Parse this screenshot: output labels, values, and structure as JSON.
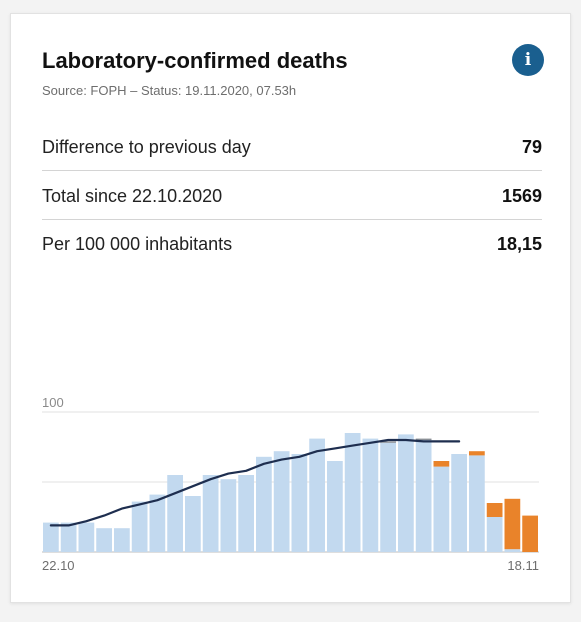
{
  "card": {
    "title": "Laboratory-confirmed deaths",
    "source": "Source: FOPH – Status: 19.11.2020, 07.53h",
    "info_icon_glyph": "i"
  },
  "kpis": [
    {
      "label": "Difference to previous day",
      "value": "79"
    },
    {
      "label": "Total since 22.10.2020",
      "value": "1569"
    },
    {
      "label": "Per 100 000 inhabitants",
      "value": "18,15"
    }
  ],
  "colors": {
    "bar_confirmed": "#c2d9ef",
    "bar_incomplete": "#e9832a",
    "line_avg": "#1e2e4f",
    "grid": "#e0e0e0",
    "info_button": "#1a5f8f"
  },
  "chart_data": {
    "type": "bar",
    "title": "",
    "xlabel": "",
    "ylabel": "",
    "ylim": [
      0,
      100
    ],
    "y_ticks": [
      50,
      100
    ],
    "y_tick_labels": [
      "",
      "100"
    ],
    "x_tick_labels": [
      "22.10",
      "18.11"
    ],
    "categories": [
      "22.10",
      "23.10",
      "24.10",
      "25.10",
      "26.10",
      "27.10",
      "28.10",
      "29.10",
      "30.10",
      "31.10",
      "01.11",
      "02.11",
      "03.11",
      "04.11",
      "05.11",
      "06.11",
      "07.11",
      "08.11",
      "09.11",
      "10.11",
      "11.11",
      "12.11",
      "13.11",
      "14.11",
      "15.11",
      "16.11",
      "17.11",
      "18.11"
    ],
    "series": [
      {
        "values": [
          21,
          21,
          21,
          17,
          17,
          36,
          41,
          55,
          40,
          55,
          52,
          55,
          68,
          72,
          70,
          81,
          65,
          85,
          81,
          78,
          84,
          80,
          61,
          70,
          69,
          25,
          2,
          0
        ]
      },
      {
        "values": [
          0,
          0,
          0,
          0,
          0,
          0,
          0,
          0,
          0,
          0,
          0,
          0,
          0,
          0,
          0,
          0,
          0,
          0,
          0,
          1,
          0,
          1,
          0,
          0,
          0,
          0,
          0,
          0
        ]
      },
      {
        "values": [
          0,
          0,
          0,
          0,
          0,
          0,
          0,
          0,
          0,
          0,
          0,
          0,
          0,
          0,
          0,
          0,
          0,
          0,
          0,
          0,
          0,
          0,
          4,
          0,
          3,
          10,
          36,
          26
        ]
      },
      {
        "values": [
          19,
          19,
          22,
          26,
          31,
          34,
          37,
          42,
          47,
          52,
          56,
          58,
          63,
          66,
          68,
          72,
          74,
          76,
          78,
          80,
          80,
          79,
          79,
          79,
          null,
          null,
          null,
          null
        ]
      }
    ]
  }
}
